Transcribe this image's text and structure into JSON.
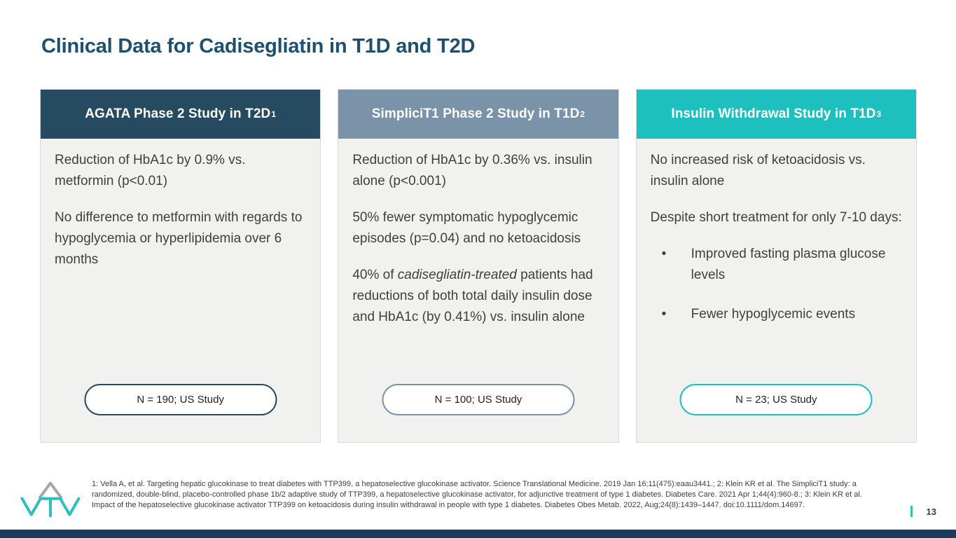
{
  "slide": {
    "title": "Clinical Data for Cadisegliatin in T1D and T2D",
    "page_number": "13"
  },
  "colors": {
    "title_text": "#1D4F6E",
    "card_body_bg": "#F1F1F0",
    "body_text": "#3F3F3F",
    "bottom_bar": "#1B3A5C",
    "logo_teal": "#2BBFBF",
    "logo_gray": "#A6A6A6"
  },
  "cards": [
    {
      "header": {
        "text": "AGATA Phase 2 Study in T2D",
        "sup": "1"
      },
      "accent": "#264A60",
      "paragraphs": [
        {
          "runs": [
            {
              "text": "Reduction of HbA1c by 0.9% vs. metformin (p<0.01)",
              "italic": false
            }
          ]
        },
        {
          "runs": [
            {
              "text": "No difference to metformin with regards to hypoglycemia or hyperlipidemia over 6 months",
              "italic": false
            }
          ]
        }
      ],
      "bullets": [],
      "badge": "N = 190; US Study"
    },
    {
      "header": {
        "text": "SimpliciT1 Phase 2 Study in T1D",
        "sup": "2"
      },
      "accent": "#7B93A8",
      "paragraphs": [
        {
          "runs": [
            {
              "text": "Reduction of HbA1c by 0.36% vs. insulin alone (p<0.001)",
              "italic": false
            }
          ]
        },
        {
          "runs": [
            {
              "text": "50% fewer symptomatic hypoglycemic episodes (p=0.04) and no ketoacidosis",
              "italic": false
            }
          ]
        },
        {
          "runs": [
            {
              "text": "40% of ",
              "italic": false
            },
            {
              "text": "cadisegliatin-treated",
              "italic": true
            },
            {
              "text": " patients had reductions of both total daily insulin dose and HbA1c (by 0.41%) vs. insulin alone",
              "italic": false
            }
          ]
        }
      ],
      "bullets": [],
      "badge": "N = 100; US Study"
    },
    {
      "header": {
        "text": "Insulin Withdrawal Study in T1D",
        "sup": "3"
      },
      "accent": "#1DBFBF",
      "paragraphs": [
        {
          "runs": [
            {
              "text": "No increased risk of ketoacidosis vs. insulin alone",
              "italic": false
            }
          ]
        },
        {
          "runs": [
            {
              "text": "Despite short treatment for only 7-10 days:",
              "italic": false
            }
          ]
        }
      ],
      "bullets": [
        "Improved fasting plasma glucose levels",
        "Fewer hypoglycemic events"
      ],
      "badge": "N = 23; US Study"
    }
  ],
  "footer": {
    "reference_lines": [
      "1: Vella A, et al. Targeting hepatic glucokinase to treat diabetes with TTP399, a hepatoselective glucokinase activator. Science Translational Medicine. 2019 Jan 16;11(475):eaau3441.; 2: Klein KR et al. The SimpliciT1 study: a",
      "randomized, double-blind, placebo-controlled phase 1b/2 adaptive study of TTP399, a hepatoselective glucokinase activator, for adjunctive treatment of type 1 diabetes. Diabetes Care. 2021 Apr 1;44(4):960-8.; 3: Klein KR et al.",
      "Impact of the hepatoselective glucokinase activator TTP399 on ketoacidosis during insulin withdrawal in people with type 1 diabetes. Diabetes Obes Metab. 2022, Aug;24(8):1439–1447. doi:10.1111/dom.14697."
    ],
    "logo_name": "vtv-therapeutics-logo",
    "bullet_glyph": "•"
  }
}
